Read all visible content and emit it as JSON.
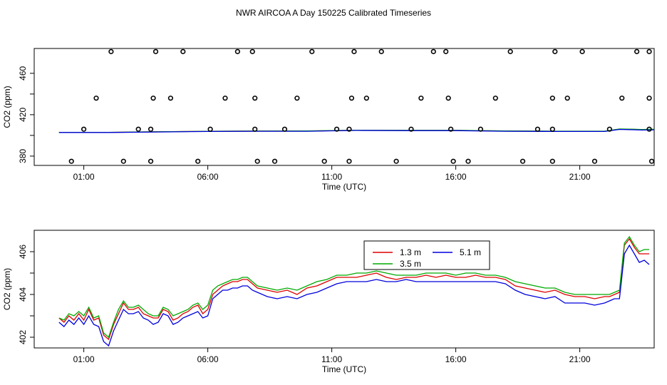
{
  "title": "NWR AIRCOA A  Day 150225  Calibrated Timeseries",
  "colors": {
    "s1": "#dd0000",
    "s2": "#00aa00",
    "s3": "#0000dd",
    "axis": "#000000"
  },
  "chart_data": [
    {
      "type": "scatter+line",
      "xlabel": "Time (UTC)",
      "ylabel": "CO2 (ppm)",
      "xticks": [
        "01:00",
        "06:00",
        "11:00",
        "16:00",
        "21:00"
      ],
      "xtick_hours": [
        1,
        6,
        11,
        16,
        21
      ],
      "yticks": [
        380,
        420,
        460
      ],
      "yticks_minor": [
        400,
        440
      ],
      "xlim": [
        -1.0,
        24.0
      ],
      "ylim": [
        371,
        484
      ],
      "calibration_points": [
        [
          0.5,
          375
        ],
        [
          1.0,
          406
        ],
        [
          1.5,
          436
        ],
        [
          2.1,
          481
        ],
        [
          2.6,
          375
        ],
        [
          3.2,
          406
        ],
        [
          3.7,
          406
        ],
        [
          3.8,
          436
        ],
        [
          3.9,
          481
        ],
        [
          3.7,
          375
        ],
        [
          4.5,
          436
        ],
        [
          5.0,
          481
        ],
        [
          5.6,
          375
        ],
        [
          6.1,
          406
        ],
        [
          6.7,
          436
        ],
        [
          7.2,
          481
        ],
        [
          7.8,
          481
        ],
        [
          7.9,
          436
        ],
        [
          7.9,
          406
        ],
        [
          8.0,
          375
        ],
        [
          8.7,
          375
        ],
        [
          9.1,
          406
        ],
        [
          9.6,
          436
        ],
        [
          10.2,
          481
        ],
        [
          10.7,
          375
        ],
        [
          11.2,
          406
        ],
        [
          11.7,
          406
        ],
        [
          11.7,
          375
        ],
        [
          11.8,
          436
        ],
        [
          11.9,
          481
        ],
        [
          12.4,
          436
        ],
        [
          13.0,
          481
        ],
        [
          13.6,
          375
        ],
        [
          14.2,
          406
        ],
        [
          14.6,
          436
        ],
        [
          15.1,
          481
        ],
        [
          15.6,
          481
        ],
        [
          15.7,
          436
        ],
        [
          15.8,
          406
        ],
        [
          15.9,
          375
        ],
        [
          16.5,
          375
        ],
        [
          17.0,
          406
        ],
        [
          17.6,
          436
        ],
        [
          18.2,
          481
        ],
        [
          18.7,
          375
        ],
        [
          19.3,
          406
        ],
        [
          19.9,
          406
        ],
        [
          19.9,
          375
        ],
        [
          19.9,
          436
        ],
        [
          20.0,
          481
        ],
        [
          20.5,
          436
        ],
        [
          21.1,
          481
        ],
        [
          21.6,
          375
        ],
        [
          22.2,
          406
        ],
        [
          22.7,
          436
        ],
        [
          23.3,
          481
        ],
        [
          23.8,
          481
        ],
        [
          23.8,
          436
        ],
        [
          23.8,
          406
        ],
        [
          23.9,
          375
        ]
      ],
      "series": [
        {
          "name": "1.3 m",
          "color": "#dd0000",
          "x": [
            0,
            2,
            4,
            6,
            8,
            10,
            12,
            14,
            16,
            18,
            20,
            22,
            22.6,
            23.0,
            23.5,
            24
          ],
          "y": [
            403,
            403,
            403.5,
            404,
            404.2,
            404.2,
            405,
            404.8,
            404.8,
            404.2,
            404,
            404,
            406,
            406,
            405.5,
            405.8
          ]
        },
        {
          "name": "3.5 m",
          "color": "#00aa00",
          "x": [
            0,
            2,
            4,
            6,
            8,
            10,
            12,
            14,
            16,
            18,
            20,
            22,
            22.6,
            23.0,
            23.5,
            24
          ],
          "y": [
            403,
            403,
            403.5,
            404,
            404.2,
            404.3,
            405,
            404.9,
            404.9,
            404.3,
            404.1,
            404.1,
            406.2,
            406.1,
            405.7,
            405.9
          ]
        },
        {
          "name": "5.1 m",
          "color": "#0000dd",
          "x": [
            0,
            2,
            4,
            6,
            8,
            10,
            12,
            14,
            16,
            18,
            20,
            22,
            22.6,
            23.0,
            23.5,
            24
          ],
          "y": [
            402.8,
            402.8,
            403.3,
            403.8,
            404,
            404,
            404.8,
            404.6,
            404.6,
            404,
            403.8,
            403.8,
            405.8,
            405.6,
            405.2,
            405.4
          ]
        }
      ]
    },
    {
      "type": "line",
      "xlabel": "Time (UTC)",
      "ylabel": "CO2 (ppm)",
      "xticks": [
        "01:00",
        "06:00",
        "11:00",
        "16:00",
        "21:00"
      ],
      "xtick_hours": [
        1,
        6,
        11,
        16,
        21
      ],
      "yticks": [
        402,
        404,
        406
      ],
      "yticks_minor": [
        403,
        405
      ],
      "xlim": [
        -1.0,
        24.0
      ],
      "ylim": [
        401.5,
        407.0
      ],
      "legend": {
        "position": "top-center",
        "entries": [
          "1.3 m",
          "3.5 m",
          "5.1 m"
        ]
      },
      "series": [
        {
          "name": "1.3 m",
          "color": "#dd0000",
          "x": [
            0.0,
            0.2,
            0.4,
            0.6,
            0.8,
            1.0,
            1.2,
            1.4,
            1.6,
            1.8,
            2.0,
            2.2,
            2.4,
            2.6,
            2.8,
            3.0,
            3.2,
            3.4,
            3.6,
            3.8,
            4.0,
            4.2,
            4.4,
            4.6,
            4.8,
            5.0,
            5.2,
            5.4,
            5.6,
            5.8,
            6.0,
            6.2,
            6.4,
            6.6,
            6.8,
            7.0,
            7.2,
            7.4,
            7.6,
            7.8,
            8.0,
            8.4,
            8.8,
            9.2,
            9.6,
            10.0,
            10.4,
            10.8,
            11.2,
            11.6,
            12.0,
            12.4,
            12.8,
            13.2,
            13.6,
            14.0,
            14.4,
            14.8,
            15.2,
            15.6,
            16.0,
            16.4,
            16.8,
            17.2,
            17.6,
            18.0,
            18.4,
            18.8,
            19.2,
            19.6,
            20.0,
            20.4,
            20.8,
            21.2,
            21.6,
            22.0,
            22.2,
            22.4,
            22.6,
            22.8,
            23.0,
            23.2,
            23.4,
            23.6,
            23.8
          ],
          "y": [
            402.9,
            402.7,
            403.0,
            402.8,
            403.1,
            402.8,
            403.3,
            402.8,
            402.9,
            402.1,
            401.9,
            402.6,
            403.1,
            403.6,
            403.3,
            403.3,
            403.4,
            403.1,
            403.0,
            402.9,
            402.9,
            403.3,
            403.2,
            402.8,
            402.9,
            403.1,
            403.2,
            403.4,
            403.5,
            403.1,
            403.3,
            404.0,
            404.2,
            404.4,
            404.5,
            404.6,
            404.6,
            404.7,
            404.7,
            404.5,
            404.3,
            404.2,
            404.1,
            404.2,
            404.0,
            404.3,
            404.4,
            404.6,
            404.8,
            404.8,
            404.8,
            404.9,
            405.0,
            404.8,
            404.7,
            404.8,
            404.8,
            404.9,
            404.8,
            404.9,
            404.8,
            404.8,
            404.9,
            404.8,
            404.8,
            404.7,
            404.4,
            404.3,
            404.2,
            404.1,
            404.2,
            404.0,
            403.9,
            403.9,
            403.8,
            403.9,
            403.9,
            404.0,
            404.1,
            406.3,
            406.6,
            406.2,
            405.9,
            405.9,
            405.9
          ]
        },
        {
          "name": "3.5 m",
          "color": "#00aa00",
          "x": [
            0.0,
            0.2,
            0.4,
            0.6,
            0.8,
            1.0,
            1.2,
            1.4,
            1.6,
            1.8,
            2.0,
            2.2,
            2.4,
            2.6,
            2.8,
            3.0,
            3.2,
            3.4,
            3.6,
            3.8,
            4.0,
            4.2,
            4.4,
            4.6,
            4.8,
            5.0,
            5.2,
            5.4,
            5.6,
            5.8,
            6.0,
            6.2,
            6.4,
            6.6,
            6.8,
            7.0,
            7.2,
            7.4,
            7.6,
            7.8,
            8.0,
            8.4,
            8.8,
            9.2,
            9.6,
            10.0,
            10.4,
            10.8,
            11.2,
            11.6,
            12.0,
            12.4,
            12.8,
            13.2,
            13.6,
            14.0,
            14.4,
            14.8,
            15.2,
            15.6,
            16.0,
            16.4,
            16.8,
            17.2,
            17.6,
            18.0,
            18.4,
            18.8,
            19.2,
            19.6,
            20.0,
            20.4,
            20.8,
            21.2,
            21.6,
            22.0,
            22.2,
            22.4,
            22.6,
            22.8,
            23.0,
            23.2,
            23.4,
            23.6,
            23.8
          ],
          "y": [
            402.9,
            402.8,
            403.1,
            403.0,
            403.2,
            403.0,
            403.4,
            402.9,
            403.0,
            402.2,
            402.0,
            402.7,
            403.3,
            403.7,
            403.4,
            403.4,
            403.5,
            403.3,
            403.1,
            403.0,
            403.0,
            403.4,
            403.3,
            403.0,
            403.1,
            403.2,
            403.3,
            403.5,
            403.6,
            403.3,
            403.5,
            404.2,
            404.4,
            404.5,
            404.6,
            404.7,
            404.7,
            404.8,
            404.8,
            404.6,
            404.4,
            404.3,
            404.2,
            404.3,
            404.2,
            404.4,
            404.6,
            404.7,
            404.9,
            404.9,
            405.0,
            405.0,
            405.1,
            405.0,
            404.9,
            404.9,
            404.9,
            405.0,
            405.0,
            405.0,
            404.9,
            405.0,
            405.0,
            404.9,
            404.9,
            404.8,
            404.6,
            404.5,
            404.4,
            404.3,
            404.3,
            404.1,
            404.0,
            404.0,
            404.0,
            404.0,
            404.0,
            404.1,
            404.2,
            406.4,
            406.7,
            406.3,
            406.0,
            406.1,
            406.1
          ]
        },
        {
          "name": "5.1 m",
          "color": "#0000dd",
          "x": [
            0.0,
            0.2,
            0.4,
            0.6,
            0.8,
            1.0,
            1.2,
            1.4,
            1.6,
            1.8,
            2.0,
            2.2,
            2.4,
            2.6,
            2.8,
            3.0,
            3.2,
            3.4,
            3.6,
            3.8,
            4.0,
            4.2,
            4.4,
            4.6,
            4.8,
            5.0,
            5.2,
            5.4,
            5.6,
            5.8,
            6.0,
            6.2,
            6.4,
            6.6,
            6.8,
            7.0,
            7.2,
            7.4,
            7.6,
            7.8,
            8.0,
            8.4,
            8.8,
            9.2,
            9.6,
            10.0,
            10.4,
            10.8,
            11.2,
            11.6,
            12.0,
            12.4,
            12.8,
            13.2,
            13.6,
            14.0,
            14.4,
            14.8,
            15.2,
            15.6,
            16.0,
            16.4,
            16.8,
            17.2,
            17.6,
            18.0,
            18.4,
            18.8,
            19.2,
            19.6,
            20.0,
            20.4,
            20.8,
            21.2,
            21.6,
            22.0,
            22.2,
            22.4,
            22.6,
            22.8,
            23.0,
            23.2,
            23.4,
            23.6,
            23.8
          ],
          "y": [
            402.7,
            402.5,
            402.8,
            402.6,
            402.9,
            402.6,
            403.0,
            402.6,
            402.5,
            401.8,
            401.6,
            402.3,
            402.8,
            403.3,
            403.1,
            403.1,
            403.2,
            402.9,
            402.8,
            402.6,
            402.7,
            403.1,
            403.0,
            402.6,
            402.7,
            402.9,
            403.0,
            403.1,
            403.2,
            402.9,
            403.0,
            403.8,
            404.0,
            404.2,
            404.2,
            404.3,
            404.3,
            404.4,
            404.4,
            404.2,
            404.1,
            403.9,
            403.8,
            403.9,
            403.8,
            404.0,
            404.1,
            404.3,
            404.5,
            404.6,
            404.6,
            404.6,
            404.7,
            404.6,
            404.6,
            404.7,
            404.6,
            404.6,
            404.6,
            404.6,
            404.6,
            404.6,
            404.6,
            404.6,
            404.6,
            404.5,
            404.2,
            404.0,
            403.9,
            403.8,
            403.9,
            403.6,
            403.6,
            403.6,
            403.5,
            403.6,
            403.7,
            403.8,
            403.8,
            405.9,
            406.3,
            405.9,
            405.5,
            405.6,
            405.4
          ]
        }
      ]
    }
  ]
}
